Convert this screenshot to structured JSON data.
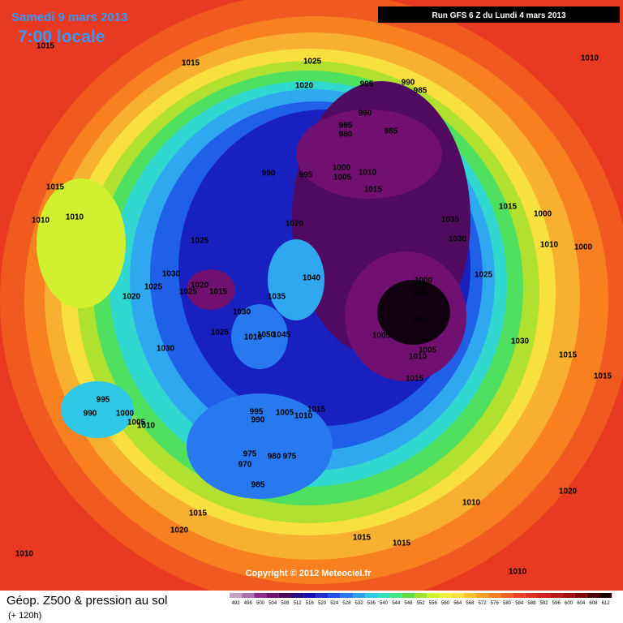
{
  "header": {
    "valid_date": "Samedi 9 mars 2013",
    "valid_time": "7:00 locale",
    "run": "Run GFS 6 Z du Lundi 4 mars 2013"
  },
  "copyright": "Copyright © 2012 Meteociel.fr",
  "footer": {
    "title": "Géop. Z500 & pression au sol",
    "lead_time": "(+ 120h)"
  },
  "isobar_labels": [
    "1015",
    "1015",
    "1025",
    "1020",
    "995",
    "990",
    "985",
    "1010",
    "990",
    "985",
    "980",
    "985",
    "990",
    "995",
    "1000",
    "1005",
    "1010",
    "1015",
    "1015",
    "1010",
    "1010",
    "1015",
    "1000",
    "1035",
    "1030",
    "1020",
    "1025",
    "1010",
    "1000",
    "1025",
    "1030",
    "1020",
    "1025",
    "1015",
    "1025",
    "1020",
    "1035",
    "1040",
    "1000",
    "995",
    "990",
    "1030",
    "985",
    "1005",
    "1010",
    "1050",
    "1045",
    "1025",
    "1030",
    "1005",
    "1010",
    "1015",
    "1030",
    "1015",
    "1015",
    "995",
    "990",
    "1000",
    "1005",
    "1010",
    "995",
    "990",
    "1005",
    "1010",
    "1015",
    "975",
    "970",
    "980",
    "975",
    "985",
    "1010",
    "1020",
    "1015",
    "1020",
    "1015",
    "1015",
    "1010",
    "1010"
  ],
  "color_scale": {
    "values": [
      492,
      496,
      500,
      504,
      508,
      512,
      516,
      520,
      524,
      528,
      532,
      536,
      540,
      544,
      548,
      552,
      556,
      560,
      564,
      568,
      572,
      576,
      580,
      584,
      588,
      592,
      596,
      600,
      604,
      608,
      612
    ],
    "colors": [
      "#c8a0c8",
      "#b070b0",
      "#902890",
      "#701070",
      "#500a60",
      "#2a0a80",
      "#1810b0",
      "#2030d0",
      "#2050e8",
      "#2878f0",
      "#30a0f0",
      "#30c8e8",
      "#30e0c0",
      "#40e880",
      "#60e040",
      "#a0e030",
      "#d0f030",
      "#f0f040",
      "#f8e040",
      "#f8c030",
      "#f8a028",
      "#f88020",
      "#f06020",
      "#e84020",
      "#e03020",
      "#d02020",
      "#b81818",
      "#a01010",
      "#800808",
      "#500404",
      "#200000"
    ]
  }
}
